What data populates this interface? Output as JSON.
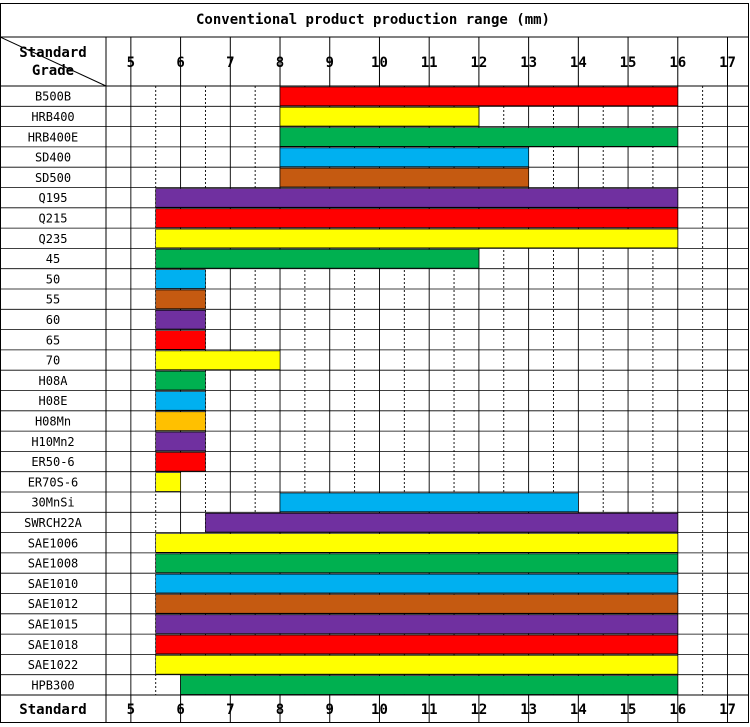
{
  "chart_data": {
    "type": "bar",
    "title": "Conventional product production range (mm)",
    "corner_label_top": "Standard",
    "corner_label_bottom": "Grade",
    "footer_label": "Standard",
    "x_ticks": [
      "5",
      "6",
      "7",
      "8",
      "9",
      "10",
      "11",
      "12",
      "13",
      "14",
      "15",
      "16",
      "17"
    ],
    "colors": {
      "red": "#ff0000",
      "yellow": "#ffff00",
      "green": "#00b050",
      "blue": "#00b0f0",
      "brown": "#c55a11",
      "purple": "#7030a0",
      "orange": "#ffc000"
    },
    "rows": [
      {
        "grade": "B500B",
        "start": 8,
        "end": 16,
        "color": "red"
      },
      {
        "grade": "HRB400",
        "start": 8,
        "end": 12,
        "color": "yellow"
      },
      {
        "grade": "HRB400E",
        "start": 8,
        "end": 16,
        "color": "green"
      },
      {
        "grade": "SD400",
        "start": 8,
        "end": 13,
        "color": "blue"
      },
      {
        "grade": "SD500",
        "start": 8,
        "end": 13,
        "color": "brown"
      },
      {
        "grade": "Q195",
        "start": 5.5,
        "end": 16,
        "color": "purple"
      },
      {
        "grade": "Q215",
        "start": 5.5,
        "end": 16,
        "color": "red"
      },
      {
        "grade": "Q235",
        "start": 5.5,
        "end": 16,
        "color": "yellow"
      },
      {
        "grade": "45",
        "start": 5.5,
        "end": 12,
        "color": "green"
      },
      {
        "grade": "50",
        "start": 5.5,
        "end": 6.5,
        "color": "blue"
      },
      {
        "grade": "55",
        "start": 5.5,
        "end": 6.5,
        "color": "brown"
      },
      {
        "grade": "60",
        "start": 5.5,
        "end": 6.5,
        "color": "purple"
      },
      {
        "grade": "65",
        "start": 5.5,
        "end": 6.5,
        "color": "red"
      },
      {
        "grade": "70",
        "start": 5.5,
        "end": 8,
        "color": "yellow"
      },
      {
        "grade": "H08A",
        "start": 5.5,
        "end": 6.5,
        "color": "green"
      },
      {
        "grade": "H08E",
        "start": 5.5,
        "end": 6.5,
        "color": "blue"
      },
      {
        "grade": "H08Mn",
        "start": 5.5,
        "end": 6.5,
        "color": "orange"
      },
      {
        "grade": "H10Mn2",
        "start": 5.5,
        "end": 6.5,
        "color": "purple"
      },
      {
        "grade": "ER50-6",
        "start": 5.5,
        "end": 6.5,
        "color": "red"
      },
      {
        "grade": "ER70S-6",
        "start": 5.5,
        "end": 6,
        "color": "yellow"
      },
      {
        "grade": "30MnSi",
        "start": 8,
        "end": 14,
        "color": "blue"
      },
      {
        "grade": "SWRCH22A",
        "start": 6.5,
        "end": 16,
        "color": "purple"
      },
      {
        "grade": "SAE1006",
        "start": 5.5,
        "end": 16,
        "color": "yellow"
      },
      {
        "grade": "SAE1008",
        "start": 5.5,
        "end": 16,
        "color": "green"
      },
      {
        "grade": "SAE1010",
        "start": 5.5,
        "end": 16,
        "color": "blue"
      },
      {
        "grade": "SAE1012",
        "start": 5.5,
        "end": 16,
        "color": "brown"
      },
      {
        "grade": "SAE1015",
        "start": 5.5,
        "end": 16,
        "color": "purple"
      },
      {
        "grade": "SAE1018",
        "start": 5.5,
        "end": 16,
        "color": "red"
      },
      {
        "grade": "SAE1022",
        "start": 5.5,
        "end": 16,
        "color": "yellow"
      },
      {
        "grade": "HPB300",
        "start": 6,
        "end": 16,
        "color": "green"
      }
    ]
  }
}
